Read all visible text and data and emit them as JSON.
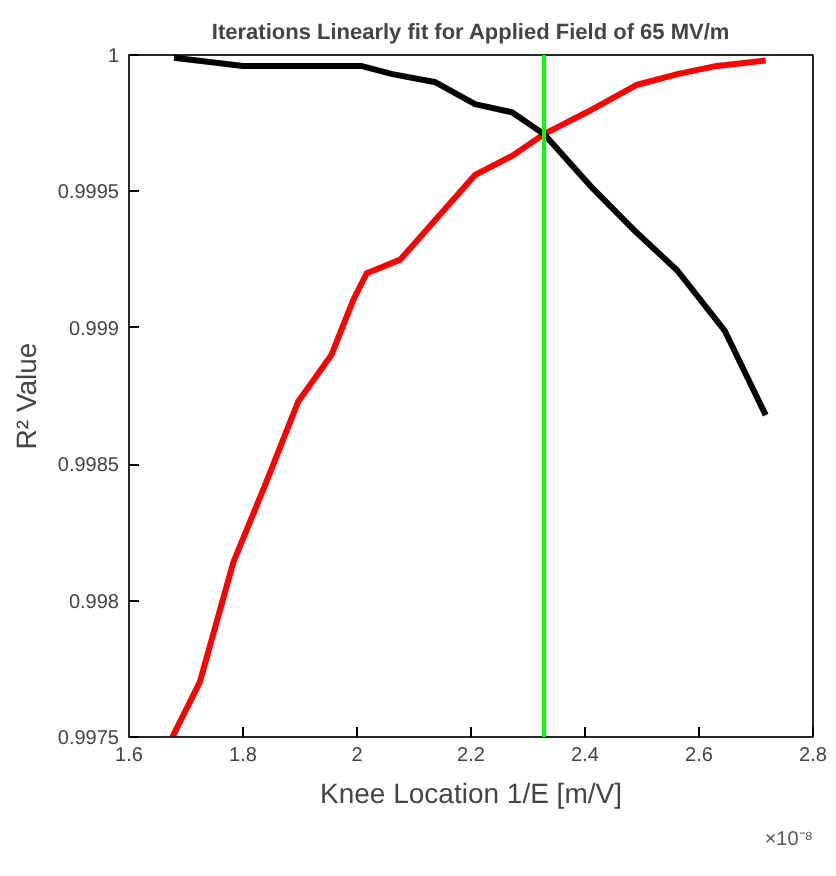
{
  "chart_data": {
    "type": "line",
    "title": "Iterations Linearly fit for Applied Field of 65 MV/m",
    "xlabel": "Knee Location 1/E [m/V]",
    "ylabel": "R² Value",
    "annotations": [
      "×10⁻⁸"
    ],
    "series": [
      {
        "color": "#ff0000",
        "x": [
          1.676,
          1.724,
          1.783,
          1.838,
          1.897,
          1.955,
          1.993,
          2.017,
          2.076,
          2.207,
          2.272,
          2.328,
          2.403,
          2.49,
          2.562,
          2.631,
          2.717
        ],
        "values": [
          0.9975,
          0.9977,
          0.99814,
          0.99842,
          0.99873,
          0.9989,
          0.9991,
          0.9992,
          0.99925,
          0.99956,
          0.99963,
          0.99971,
          0.99979,
          0.99989,
          0.99993,
          0.99996,
          0.99998
        ]
      },
      {
        "color": "#000000",
        "x": [
          1.679,
          1.8,
          1.914,
          2.007,
          2.062,
          2.138,
          2.207,
          2.272,
          2.328,
          2.414,
          2.49,
          2.562,
          2.645,
          2.717
        ],
        "values": [
          0.99999,
          0.99996,
          0.99996,
          0.99996,
          0.99993,
          0.9999,
          0.99982,
          0.99979,
          0.99971,
          0.99951,
          0.99935,
          0.99921,
          0.99899,
          0.99868
        ]
      }
    ],
    "ref_lines": [
      {
        "axis": "x",
        "value": 2.328,
        "color": "#00ff00"
      }
    ],
    "xlim": [
      1.6,
      2.8
    ],
    "ylim": [
      0.9975,
      1
    ],
    "xticks": [
      1.6,
      1.8,
      2,
      2.2,
      2.4,
      2.6,
      2.8
    ],
    "yticks": [
      0.9975,
      0.998,
      0.9985,
      0.999,
      0.9995,
      1
    ],
    "grid": false,
    "line_style": "solid",
    "marker": "none"
  }
}
